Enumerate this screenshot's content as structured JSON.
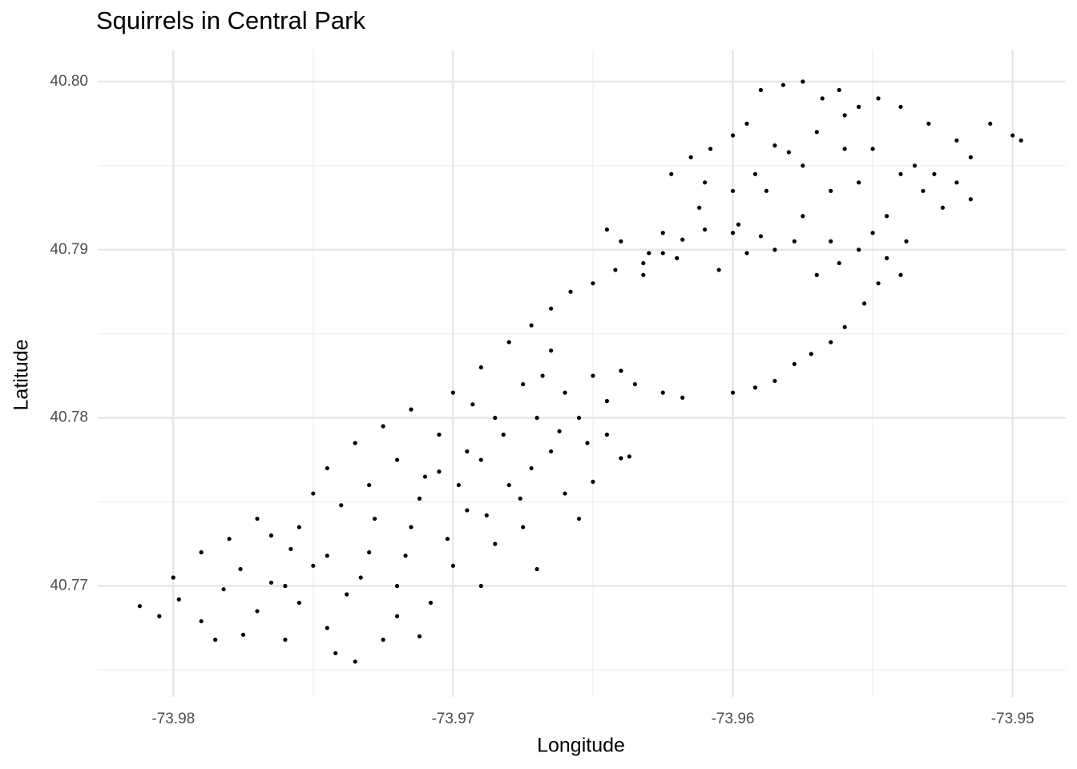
{
  "chart_data": {
    "type": "scatter",
    "title": "Squirrels in Central Park",
    "x_label": "Longitude",
    "y_label": "Latitude",
    "color": "#000000",
    "grid": true,
    "xlim": [
      -73.9827,
      -73.9481
    ],
    "ylim": [
      40.7634,
      40.8019
    ],
    "xticks": [
      -73.98,
      -73.97,
      -73.96,
      -73.95
    ],
    "yticks": [
      40.77,
      40.78,
      40.79,
      {
        "value": 40.8,
        "label": "40.80"
      }
    ],
    "x": [
      -73.9812,
      -73.9805,
      -73.9798,
      -73.979,
      -73.9782,
      -73.9775,
      -73.977,
      -73.9765,
      -73.976,
      -73.9755,
      -73.975,
      -73.9745,
      -73.9742,
      -73.9738,
      -73.9735,
      -73.973,
      -73.9725,
      -73.972,
      -73.9715,
      -73.9712,
      -73.9708,
      -73.97,
      -73.9695,
      -73.969,
      -73.9685,
      -73.968,
      -73.9675,
      -73.967,
      -73.9665,
      -73.966,
      -73.9655,
      -73.965,
      -73.9645,
      -73.964,
      -73.9637,
      -73.98,
      -73.979,
      -73.978,
      -73.977,
      -73.9765,
      -73.9755,
      -73.975,
      -73.9745,
      -73.974,
      -73.9735,
      -73.973,
      -73.9725,
      -73.972,
      -73.9715,
      -73.971,
      -73.9705,
      -73.97,
      -73.9695,
      -73.969,
      -73.9685,
      -73.968,
      -73.9675,
      -73.967,
      -73.9665,
      -73.966,
      -73.9655,
      -73.965,
      -73.9645,
      -73.964,
      -73.9635,
      -73.9625,
      -73.9618,
      -73.976,
      -73.9745,
      -73.9728,
      -73.9712,
      -73.9705,
      -73.9698,
      -73.969,
      -73.9682,
      -73.9672,
      -73.9662,
      -73.972,
      -73.9702,
      -73.9688,
      -73.9676,
      -73.9785,
      -73.9776,
      -73.9758,
      -73.9733,
      -73.9717,
      -73.9693,
      -73.9668,
      -73.9652,
      -73.9672,
      -73.9665,
      -73.9658,
      -73.965,
      -73.9642,
      -73.9632,
      -73.9625,
      -73.9618,
      -73.961,
      -73.96,
      -73.9592,
      -73.9585,
      -73.9578,
      -73.9572,
      -73.9565,
      -73.956,
      -73.9553,
      -73.9548,
      -73.954,
      -73.9632,
      -73.9625,
      -73.962,
      -73.9612,
      -73.9605,
      -73.96,
      -73.9598,
      -73.9592,
      -73.9585,
      -73.958,
      -73.9575,
      -73.957,
      -73.9565,
      -73.956,
      -73.9555,
      -73.955,
      -73.9545,
      -73.954,
      -73.9535,
      -73.953,
      -73.9525,
      -73.952,
      -73.9515,
      -73.9508,
      -73.95,
      -73.9497,
      -73.959,
      -73.9582,
      -73.9575,
      -73.9568,
      -73.9562,
      -73.9555,
      -73.9548,
      -73.9595,
      -73.9608,
      -73.9615,
      -73.9622,
      -73.961,
      -73.96,
      -73.959,
      -73.9578,
      -73.957,
      -73.9562,
      -73.9555,
      -73.9545,
      -73.9538,
      -73.9532,
      -73.954,
      -73.9528,
      -73.952,
      -73.9515,
      -73.956,
      -73.9585,
      -73.9575,
      -73.9565,
      -73.9588,
      -73.96,
      -73.9595,
      -73.955,
      -73.963,
      -73.964,
      -73.9645
    ],
    "y": [
      40.7688,
      40.7682,
      40.7692,
      40.7679,
      40.7698,
      40.7671,
      40.7685,
      40.7702,
      40.7668,
      40.769,
      40.7712,
      40.7675,
      40.766,
      40.7695,
      40.7655,
      40.772,
      40.7668,
      40.77,
      40.7735,
      40.767,
      40.769,
      40.7712,
      40.7745,
      40.77,
      40.7725,
      40.776,
      40.7735,
      40.771,
      40.778,
      40.7755,
      40.774,
      40.7762,
      40.779,
      40.7776,
      40.7777,
      40.7705,
      40.772,
      40.7728,
      40.774,
      40.773,
      40.7735,
      40.7755,
      40.777,
      40.7748,
      40.7785,
      40.776,
      40.7795,
      40.7775,
      40.7805,
      40.7765,
      40.779,
      40.7815,
      40.778,
      40.783,
      40.78,
      40.7845,
      40.782,
      40.78,
      40.784,
      40.7815,
      40.78,
      40.7825,
      40.781,
      40.7828,
      40.782,
      40.7815,
      40.7812,
      40.77,
      40.7718,
      40.774,
      40.7752,
      40.7768,
      40.776,
      40.7775,
      40.779,
      40.777,
      40.7792,
      40.7682,
      40.7728,
      40.7742,
      40.7752,
      40.7668,
      40.771,
      40.7722,
      40.7705,
      40.7718,
      40.7808,
      40.7825,
      40.7785,
      40.7855,
      40.7865,
      40.7875,
      40.788,
      40.7888,
      40.7892,
      40.7898,
      40.7906,
      40.7912,
      40.7815,
      40.7818,
      40.7822,
      40.7832,
      40.7838,
      40.7845,
      40.7854,
      40.7868,
      40.788,
      40.7885,
      40.7885,
      40.791,
      40.7895,
      40.7925,
      40.7888,
      40.7935,
      40.7915,
      40.7945,
      40.79,
      40.7958,
      40.792,
      40.797,
      40.7905,
      40.798,
      40.794,
      40.796,
      40.792,
      40.7985,
      40.795,
      40.7975,
      40.7925,
      40.7965,
      40.7955,
      40.7975,
      40.7968,
      40.7965,
      40.7995,
      40.7998,
      40.8,
      40.799,
      40.7995,
      40.7985,
      40.799,
      40.7975,
      40.796,
      40.7955,
      40.7945,
      40.794,
      40.791,
      40.7908,
      40.7905,
      40.7885,
      40.7892,
      40.79,
      40.7895,
      40.7905,
      40.7935,
      40.7945,
      40.7945,
      40.794,
      40.793,
      40.796,
      40.7962,
      40.795,
      40.7935,
      40.7935,
      40.7968,
      40.7898,
      40.791,
      40.7898,
      40.7905,
      40.7912
    ]
  }
}
